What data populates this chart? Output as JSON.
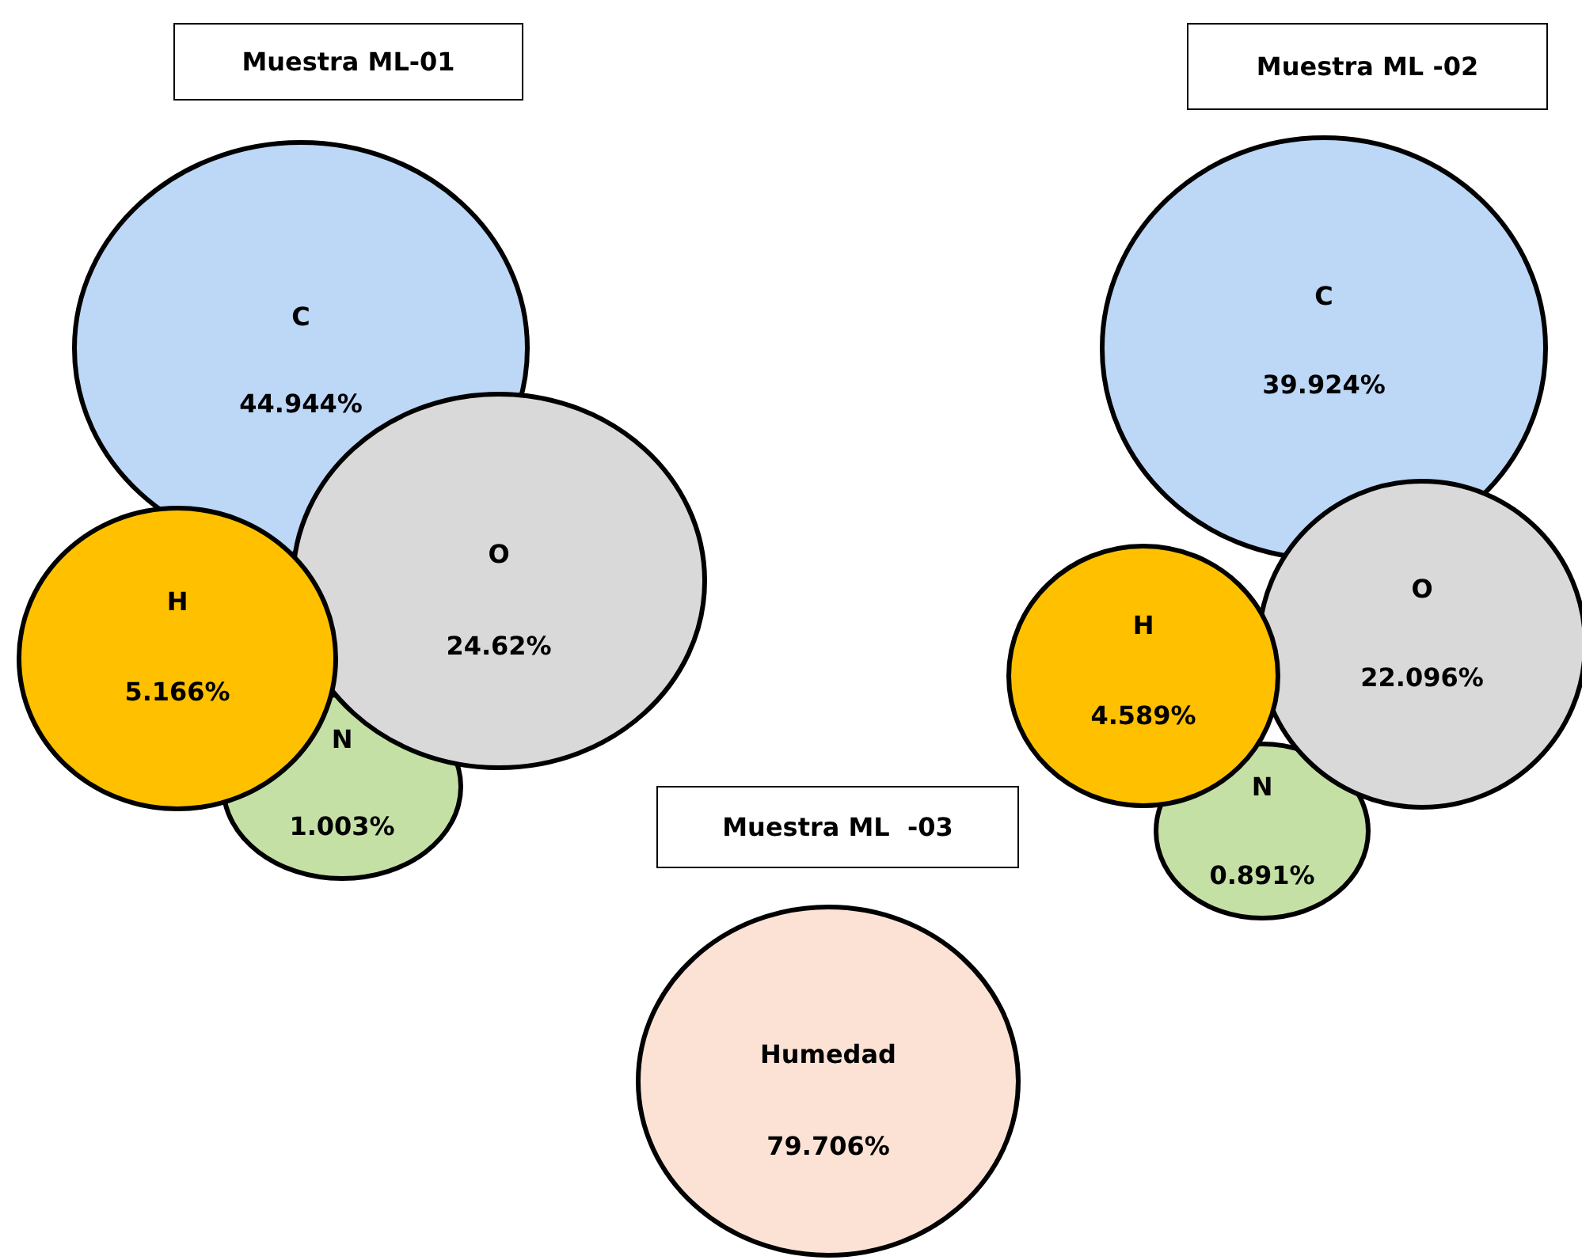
{
  "chart_data": [
    {
      "type": "other",
      "title": "Muestra ML-01",
      "categories": [
        "C",
        "O",
        "H",
        "N"
      ],
      "values": [
        44.944,
        24.62,
        5.166,
        1.003
      ],
      "value_labels": [
        "44.944%",
        "24.62%",
        "5.166%",
        "1.003%"
      ],
      "colors": [
        "#bdd7f6",
        "#d9d9d9",
        "#ffc000",
        "#c5e0a5"
      ]
    },
    {
      "type": "other",
      "title": "Muestra ML -02",
      "categories": [
        "C",
        "O",
        "H",
        "N"
      ],
      "values": [
        39.924,
        22.096,
        4.589,
        0.891
      ],
      "value_labels": [
        "39.924%",
        "22.096%",
        "4.589%",
        "0.891%"
      ],
      "colors": [
        "#bdd7f6",
        "#d9d9d9",
        "#ffc000",
        "#c5e0a5"
      ]
    },
    {
      "type": "other",
      "title": "Muestra ML  -03",
      "categories": [
        "Humedad"
      ],
      "values": [
        79.706
      ],
      "value_labels": [
        "79.706%"
      ],
      "colors": [
        "#fbe2d5"
      ]
    }
  ]
}
